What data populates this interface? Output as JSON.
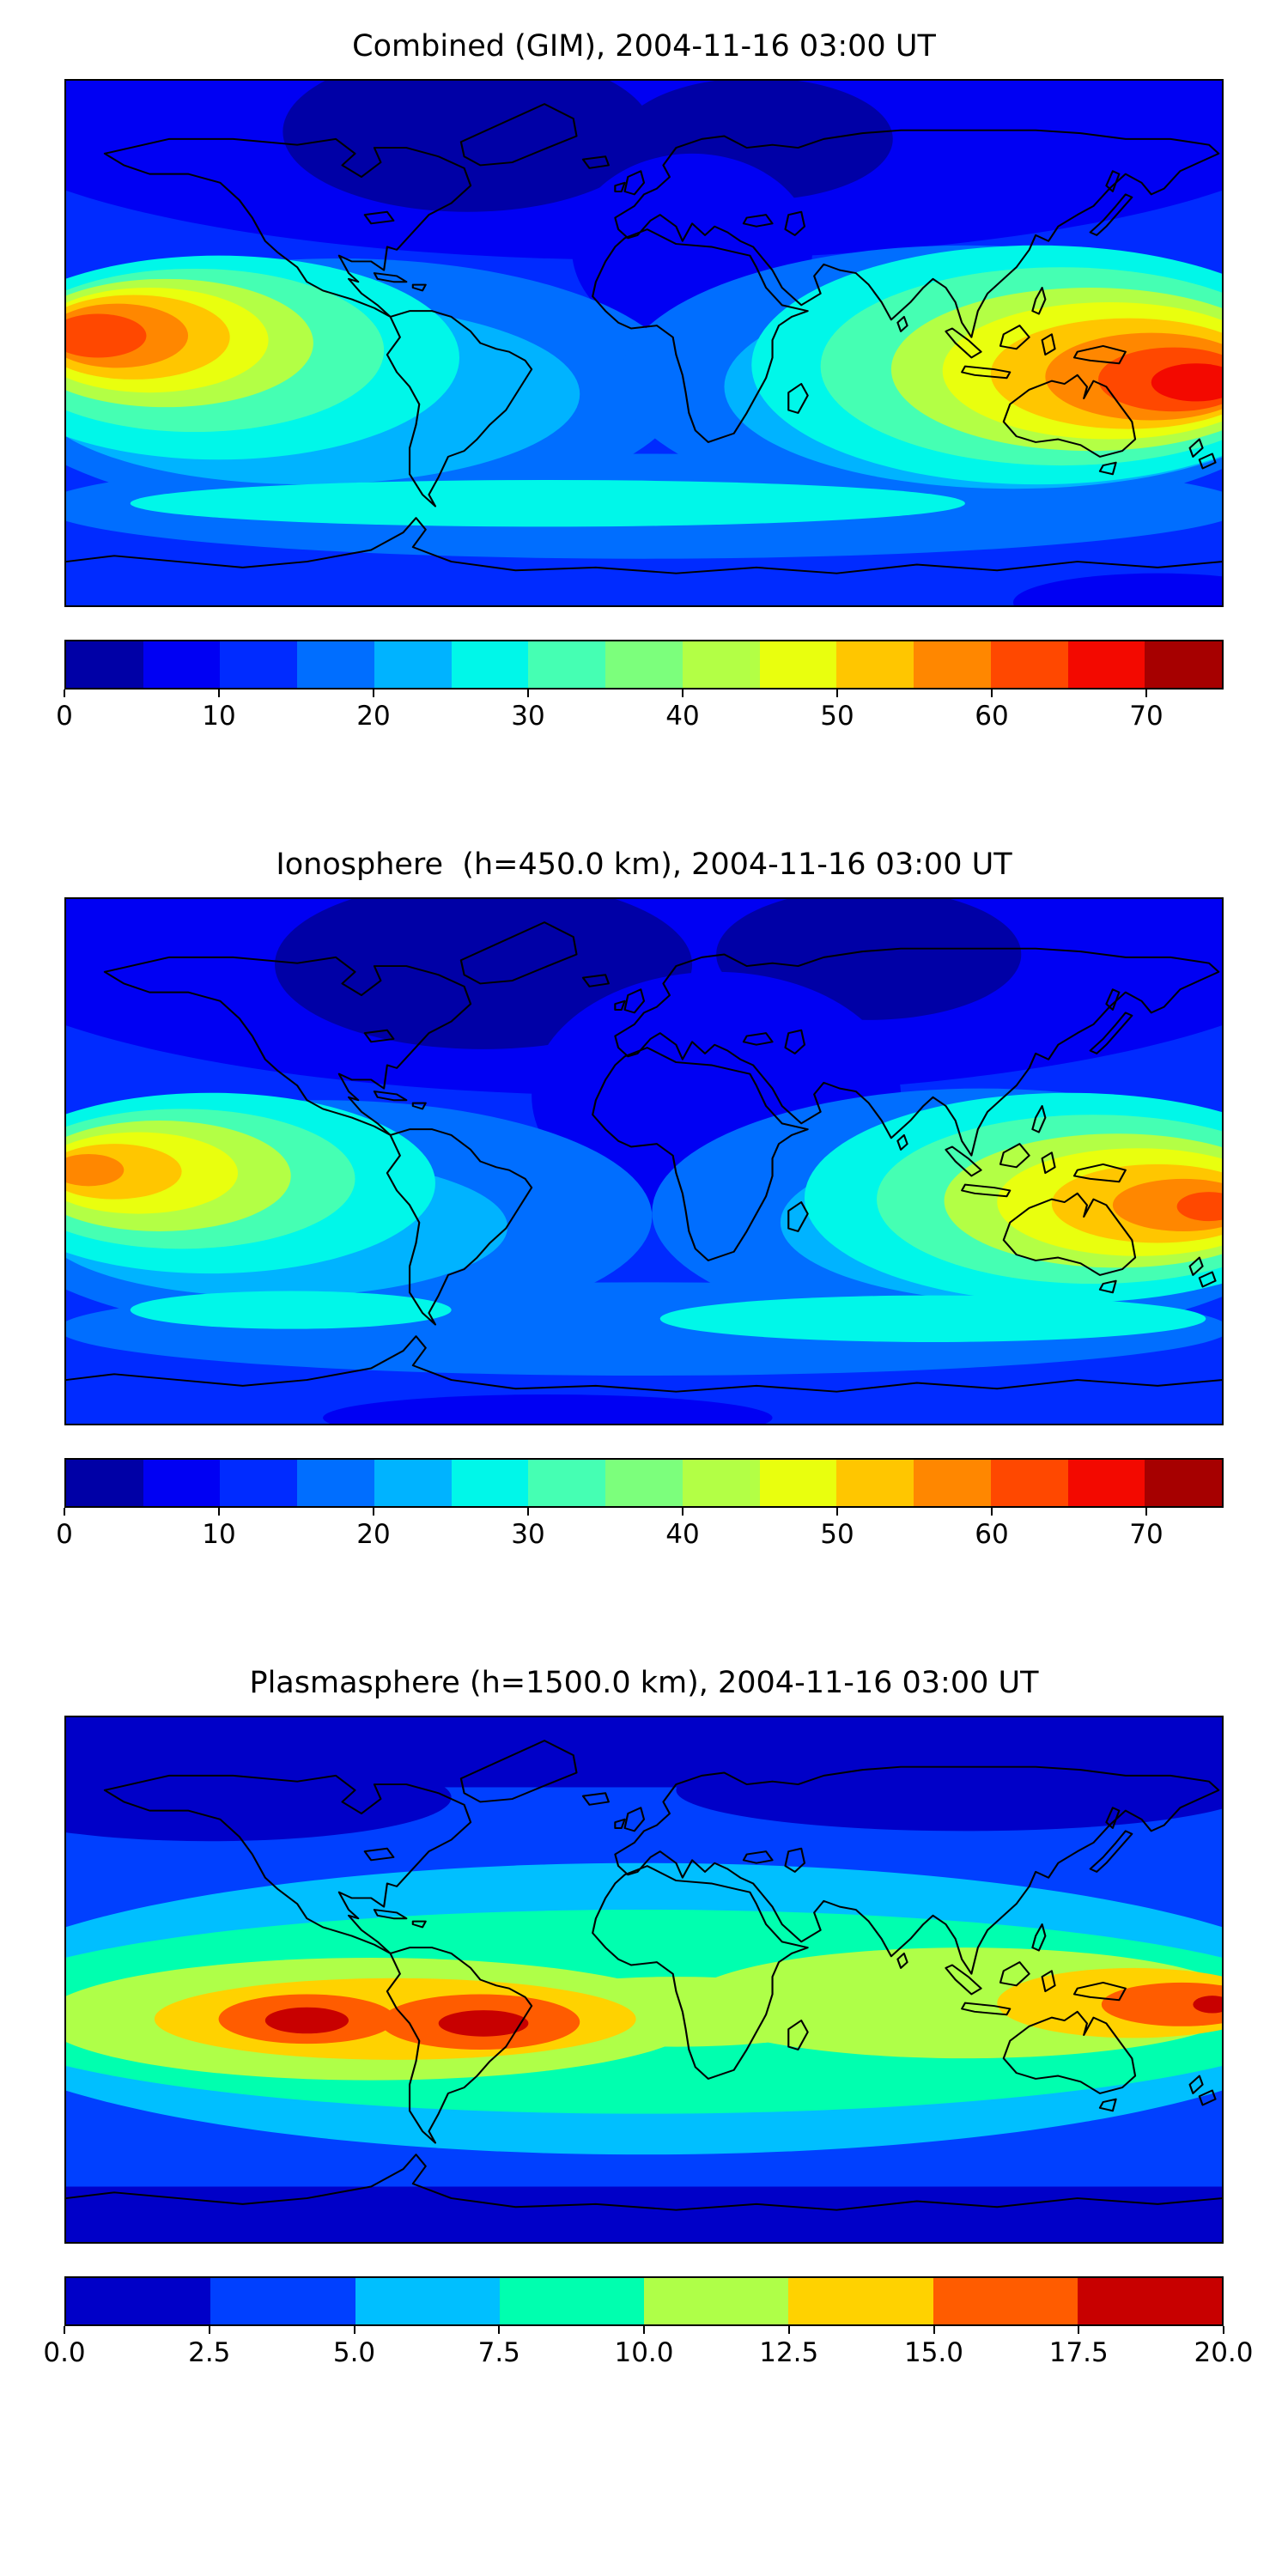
{
  "page": {
    "background": "#ffffff"
  },
  "panels": [
    {
      "title": "Combined (GIM), 2004-11-16 03:00 UT",
      "colorbar": {
        "min": 0,
        "max": 75,
        "colors": [
          "#0000a6",
          "#0000f3",
          "#002bff",
          "#006eff",
          "#00b3ff",
          "#00f7e9",
          "#45ffb3",
          "#7cff7c",
          "#b3ff45",
          "#e9ff0e",
          "#ffc600",
          "#ff8700",
          "#ff4800",
          "#f30900",
          "#a60000"
        ],
        "ticks": [
          {
            "value": 0,
            "label": "0"
          },
          {
            "value": 10,
            "label": "10"
          },
          {
            "value": 20,
            "label": "20"
          },
          {
            "value": 30,
            "label": "30"
          },
          {
            "value": 40,
            "label": "40"
          },
          {
            "value": 50,
            "label": "50"
          },
          {
            "value": 60,
            "label": "60"
          },
          {
            "value": 70,
            "label": "70"
          }
        ]
      }
    },
    {
      "title": "Ionosphere  (h=450.0 km), 2004-11-16 03:00 UT",
      "colorbar": {
        "min": 0,
        "max": 75,
        "colors": [
          "#0000a6",
          "#0000f3",
          "#002bff",
          "#006eff",
          "#00b3ff",
          "#00f7e9",
          "#45ffb3",
          "#7cff7c",
          "#b3ff45",
          "#e9ff0e",
          "#ffc600",
          "#ff8700",
          "#ff4800",
          "#f30900",
          "#a60000"
        ],
        "ticks": [
          {
            "value": 0,
            "label": "0"
          },
          {
            "value": 10,
            "label": "10"
          },
          {
            "value": 20,
            "label": "20"
          },
          {
            "value": 30,
            "label": "30"
          },
          {
            "value": 40,
            "label": "40"
          },
          {
            "value": 50,
            "label": "50"
          },
          {
            "value": 60,
            "label": "60"
          },
          {
            "value": 70,
            "label": "70"
          }
        ]
      }
    },
    {
      "title": "Plasmasphere (h=1500.0 km), 2004-11-16 03:00 UT",
      "colorbar": {
        "min": 0,
        "max": 20,
        "colors": [
          "#0000c8",
          "#0040ff",
          "#00bfff",
          "#00ffaf",
          "#afff48",
          "#ffd200",
          "#ff5c00",
          "#c80000"
        ],
        "ticks": [
          {
            "value": 0,
            "label": "0.0"
          },
          {
            "value": 2.5,
            "label": "2.5"
          },
          {
            "value": 5,
            "label": "5.0"
          },
          {
            "value": 7.5,
            "label": "7.5"
          },
          {
            "value": 10,
            "label": "10.0"
          },
          {
            "value": 12.5,
            "label": "12.5"
          },
          {
            "value": 15,
            "label": "15.0"
          },
          {
            "value": 17.5,
            "label": "17.5"
          },
          {
            "value": 20,
            "label": "20.0"
          }
        ]
      }
    }
  ],
  "chart_data": [
    {
      "type": "heatmap",
      "title": "Combined (GIM), 2004-11-16 03:00 UT",
      "projection": "equirectangular world map (lon -180..180, lat -90..90)",
      "colormap": "jet",
      "value_range": [
        0,
        75
      ],
      "contour_step": 5,
      "colorbar_ticks": [
        0,
        10,
        20,
        30,
        40,
        50,
        60,
        70
      ],
      "features": [
        {
          "region": "equatorial eastern Pacific (left map edge)",
          "approx_peak": 62
        },
        {
          "region": "Southeast Asia / western Pacific / northern Australia (right map edge)",
          "approx_peak": 72
        },
        {
          "region": "high northern latitudes (N America, N Atlantic, Siberia)",
          "approx_value": 3
        },
        {
          "region": "northern Africa / Europe tongue",
          "approx_value": 8
        },
        {
          "region": "southern mid-latitude cyan band",
          "approx_value": 27
        }
      ]
    },
    {
      "type": "heatmap",
      "title": "Ionosphere (h=450.0 km), 2004-11-16 03:00 UT",
      "projection": "equirectangular world map (lon -180..180, lat -90..90)",
      "colormap": "jet",
      "value_range": [
        0,
        75
      ],
      "contour_step": 5,
      "colorbar_ticks": [
        0,
        10,
        20,
        30,
        40,
        50,
        60,
        70
      ],
      "features": [
        {
          "region": "equatorial eastern Pacific (left map edge)",
          "approx_peak": 50
        },
        {
          "region": "Southeast Asia / western Pacific / northern Australia (right map edge)",
          "approx_peak": 60
        },
        {
          "region": "high northern latitudes and central dark region over Europe/Africa",
          "approx_value": 5
        },
        {
          "region": "southern mid-latitude band",
          "approx_value": 22
        }
      ]
    },
    {
      "type": "heatmap",
      "title": "Plasmasphere (h=1500.0 km), 2004-11-16 03:00 UT",
      "projection": "equirectangular world map (lon -180..180, lat -90..90)",
      "colormap": "jet",
      "value_range": [
        0,
        20
      ],
      "contour_step": 2.5,
      "colorbar_ticks": [
        0,
        2.5,
        5,
        7.5,
        10,
        12.5,
        15,
        17.5,
        20
      ],
      "features": [
        {
          "region": "global equatorial band",
          "approx_value": 10
        },
        {
          "region": "South America sector hot cores",
          "approx_peak": 18.5
        },
        {
          "region": "western Pacific (right map edge) core",
          "approx_peak": 18
        },
        {
          "region": "polar latitudes top/bottom bands",
          "approx_value": 1.5
        }
      ]
    }
  ]
}
